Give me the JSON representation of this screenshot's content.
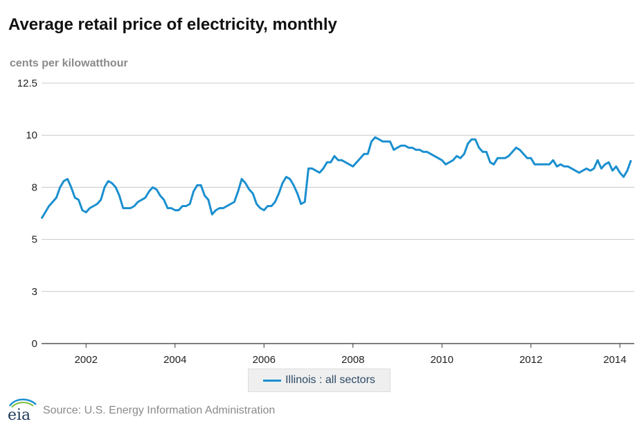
{
  "colors": {
    "series": "#1a8fcf",
    "grid": "#c8c8c8",
    "axis": "#333333"
  },
  "logo": {
    "text": "eia",
    "icon": "eia-logo-icon"
  },
  "source": "Source: U.S. Energy Information Administration",
  "chart_data": {
    "type": "line",
    "title": "Average retail price of electricity, monthly",
    "ylabel": "cents per kilowatthour",
    "xlabel": "",
    "ylim": [
      0,
      12.5
    ],
    "yticks": [
      0,
      2.5,
      5,
      7.5,
      10,
      12.5
    ],
    "ytick_labels": [
      "0",
      "3",
      "5",
      "8",
      "10",
      "12.5"
    ],
    "xlim": [
      2001.0,
      2014.1667
    ],
    "xticks": [
      2002,
      2004,
      2006,
      2008,
      2010,
      2012,
      2014
    ],
    "xtick_labels": [
      "2002",
      "2004",
      "2006",
      "2008",
      "2010",
      "2012",
      "2014"
    ],
    "grid": true,
    "legend_position": "bottom-center",
    "series": [
      {
        "name": "Illinois : all sectors",
        "x_start": "2001-01",
        "frequency": "monthly",
        "values": [
          6.0,
          6.3,
          6.6,
          6.8,
          7.0,
          7.5,
          7.8,
          7.9,
          7.5,
          7.0,
          6.9,
          6.4,
          6.3,
          6.5,
          6.6,
          6.7,
          6.9,
          7.5,
          7.8,
          7.7,
          7.5,
          7.1,
          6.5,
          6.5,
          6.5,
          6.6,
          6.8,
          6.9,
          7.0,
          7.3,
          7.5,
          7.4,
          7.1,
          6.9,
          6.5,
          6.5,
          6.4,
          6.4,
          6.6,
          6.6,
          6.7,
          7.3,
          7.6,
          7.6,
          7.1,
          6.9,
          6.2,
          6.4,
          6.5,
          6.5,
          6.6,
          6.7,
          6.8,
          7.3,
          7.9,
          7.7,
          7.4,
          7.2,
          6.7,
          6.5,
          6.4,
          6.6,
          6.6,
          6.8,
          7.2,
          7.7,
          8.0,
          7.9,
          7.6,
          7.2,
          6.7,
          6.8,
          8.4,
          8.4,
          8.3,
          8.2,
          8.4,
          8.7,
          8.7,
          9.0,
          8.8,
          8.8,
          8.7,
          8.6,
          8.5,
          8.7,
          8.9,
          9.1,
          9.1,
          9.7,
          9.9,
          9.8,
          9.7,
          9.7,
          9.7,
          9.3,
          9.4,
          9.5,
          9.5,
          9.4,
          9.4,
          9.3,
          9.3,
          9.2,
          9.2,
          9.1,
          9.0,
          8.9,
          8.8,
          8.6,
          8.7,
          8.8,
          9.0,
          8.9,
          9.1,
          9.6,
          9.8,
          9.8,
          9.4,
          9.2,
          9.2,
          8.7,
          8.6,
          8.9,
          8.9,
          8.9,
          9.0,
          9.2,
          9.4,
          9.3,
          9.1,
          8.9,
          8.9,
          8.6,
          8.6,
          8.6,
          8.6,
          8.6,
          8.8,
          8.5,
          8.6,
          8.5,
          8.5,
          8.4,
          8.3,
          8.2,
          8.3,
          8.4,
          8.3,
          8.4,
          8.8,
          8.4,
          8.6,
          8.7,
          8.3,
          8.5,
          8.2,
          8.0,
          8.3,
          8.8
        ]
      }
    ]
  }
}
